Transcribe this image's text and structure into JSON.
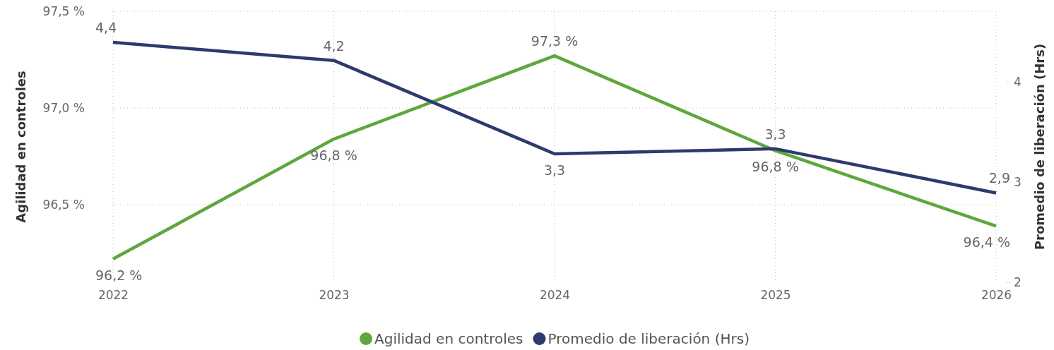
{
  "chart_data": {
    "type": "line",
    "xlabel": null,
    "ylabel": "Agilidad en controles",
    "y2label": "Promedio de liberación (Hrs)",
    "x": [
      2022,
      2023,
      2024,
      2025,
      2026
    ],
    "xlim": [
      2022,
      2026
    ],
    "xticks": [
      2022,
      2023,
      2024,
      2025,
      2026
    ],
    "ylim": [
      96.1,
      97.5
    ],
    "yticks": [
      {
        "value": 96.5,
        "label": "96,5 %"
      },
      {
        "value": 97.0,
        "label": "97,0 %"
      },
      {
        "value": 97.5,
        "label": "97,5 %"
      }
    ],
    "y2lim": [
      2,
      4.7
    ],
    "y2ticks": [
      2,
      3,
      4
    ],
    "series": [
      {
        "name": "Agilidad en controles",
        "color": "#5ea73c",
        "values": [
          96.22,
          96.84,
          97.27,
          96.78,
          96.39
        ],
        "value_labels": [
          "96,2 %",
          "96,8 %",
          "97,3 %",
          "96,8 %",
          "96,4 %"
        ]
      },
      {
        "name": "Promedio de liberación (Hrs)",
        "color": "#2e3a6e",
        "axis": "y2",
        "values": [
          4.39,
          4.21,
          3.28,
          3.33,
          2.89
        ],
        "value_labels": [
          "4,4",
          "4,2",
          "3,3",
          "3,3",
          "2,9"
        ]
      }
    ],
    "grid": true,
    "legend": "bottom",
    "marker": "none",
    "line_style": "solid"
  }
}
